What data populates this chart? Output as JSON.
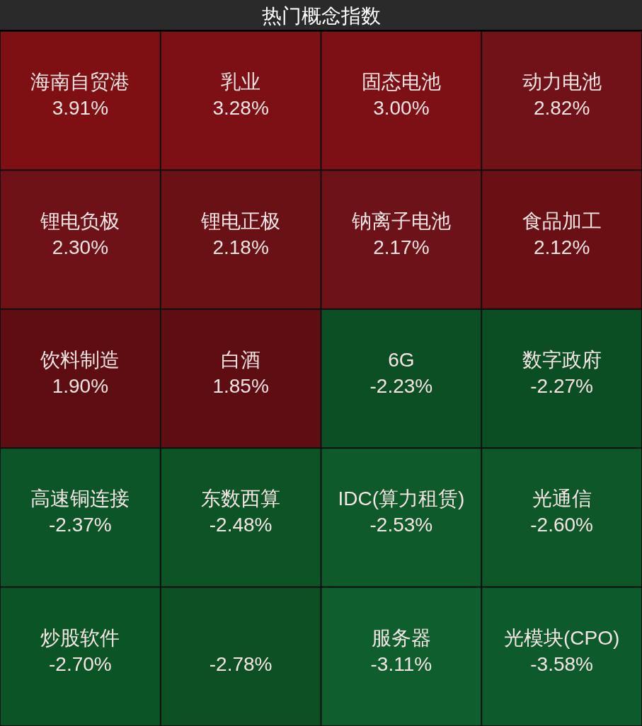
{
  "chart_data": {
    "type": "other",
    "title": "热门概念指数",
    "categories": [
      "海南自贸港",
      "乳业",
      "固态电池",
      "动力电池",
      "锂电负极",
      "锂电正极",
      "钠离子电池",
      "食品加工",
      "饮料制造",
      "白酒",
      "6G",
      "数字政府",
      "高速铜连接",
      "东数西算",
      "IDC(算力租赁)",
      "光通信",
      "炒股软件",
      null,
      "服务器",
      "光模块(CPO)"
    ],
    "values": [
      3.91,
      3.28,
      3.0,
      2.82,
      2.3,
      2.18,
      2.17,
      2.12,
      1.9,
      1.85,
      -2.23,
      -2.27,
      -2.37,
      -2.48,
      -2.53,
      -2.6,
      -2.7,
      -2.78,
      -3.11,
      -3.58
    ],
    "value_labels": [
      "3.91%",
      "3.28%",
      "3.00%",
      "2.82%",
      "2.30%",
      "2.18%",
      "2.17%",
      "2.12%",
      "1.90%",
      "1.85%",
      "-2.23%",
      "-2.27%",
      "-2.37%",
      "-2.48%",
      "-2.53%",
      "-2.60%",
      "-2.70%",
      "-2.78%",
      "-3.11%",
      "-3.58%"
    ],
    "colors": [
      "#7e1014",
      "#7c1014",
      "#7c1014",
      "#701218",
      "#6e1218",
      "#6a1116",
      "#6c1218",
      "#6a1014",
      "#5e0e13",
      "#5e0e12",
      "#0c4f24",
      "#0c4e24",
      "#0c5528",
      "#0c5426",
      "#0e5a2a",
      "#0d5728",
      "#0b5426",
      "#0c5024",
      "#0e5e2e",
      "#0d5a2c"
    ]
  }
}
